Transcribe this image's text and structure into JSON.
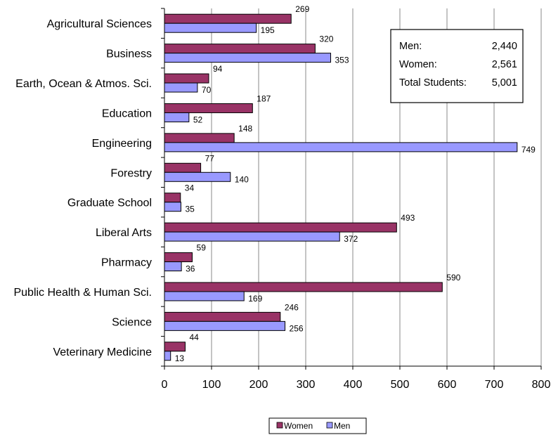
{
  "chart_data": {
    "type": "bar",
    "orientation": "horizontal",
    "categories": [
      "Agricultural Sciences",
      "Business",
      "Earth, Ocean & Atmos. Sci.",
      "Education",
      "Engineering",
      "Forestry",
      "Graduate School",
      "Liberal Arts",
      "Pharmacy",
      "Public Health & Human Sci.",
      "Science",
      "Veterinary Medicine"
    ],
    "series": [
      {
        "name": "Women",
        "color": "#993366",
        "values": [
          269,
          320,
          94,
          187,
          148,
          77,
          34,
          493,
          59,
          590,
          246,
          44
        ],
        "labels": [
          "269",
          "320",
          "94",
          "187",
          "148",
          "77",
          "34",
          "493",
          "59",
          "590",
          "246",
          "44"
        ]
      },
      {
        "name": "Men",
        "color": "#9999FF",
        "values": [
          195,
          353,
          70,
          52,
          749,
          140,
          35,
          372,
          36,
          169,
          256,
          13
        ],
        "labels": [
          "195",
          "353",
          "70",
          "52",
          "749",
          "140",
          "35",
          "372",
          "36",
          "169",
          "256",
          "13"
        ]
      }
    ],
    "xlim": [
      0,
      800
    ],
    "xticks": [
      0,
      100,
      200,
      300,
      400,
      500,
      600,
      700,
      800
    ],
    "xtick_labels": [
      "0",
      "100",
      "200",
      "300",
      "400",
      "500",
      "600",
      "700",
      "800"
    ],
    "grid": "vertical",
    "legend_position": "bottom",
    "legend": [
      "Women",
      "Men"
    ],
    "summary_box": {
      "rows": [
        {
          "label": "Men:",
          "value": "2,440"
        },
        {
          "label": "Women:",
          "value": "2,561"
        },
        {
          "label": "Total Students:",
          "value": "5,001"
        }
      ]
    }
  }
}
